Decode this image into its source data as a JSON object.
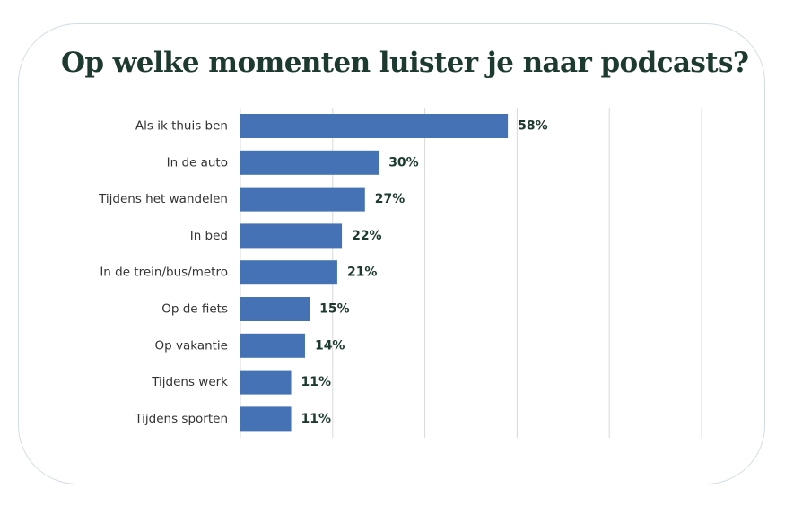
{
  "title": "Op welke momenten luister je naar podcasts?",
  "colors": {
    "bar": "#4472b4",
    "grid": "#d9d9d9",
    "text": "#333333",
    "title": "#1d3a30",
    "border": "#d3dde7"
  },
  "chart_data": {
    "type": "bar",
    "orientation": "horizontal",
    "title": "Op welke momenten luister je naar podcasts?",
    "xlabel": "",
    "ylabel": "",
    "xlim": [
      0,
      100
    ],
    "grid": true,
    "value_labels": [
      "58%",
      "30%",
      "27%",
      "22%",
      "21%",
      "15%",
      "14%",
      "11%",
      "11%"
    ],
    "categories": [
      "Als ik thuis ben",
      "In de auto",
      "Tijdens het wandelen",
      "In bed",
      "In de trein/bus/metro",
      "Op de fiets",
      "Op vakantie",
      "Tijdens werk",
      "Tijdens sporten"
    ],
    "values": [
      58,
      30,
      27,
      22,
      21,
      15,
      14,
      11,
      11
    ]
  }
}
